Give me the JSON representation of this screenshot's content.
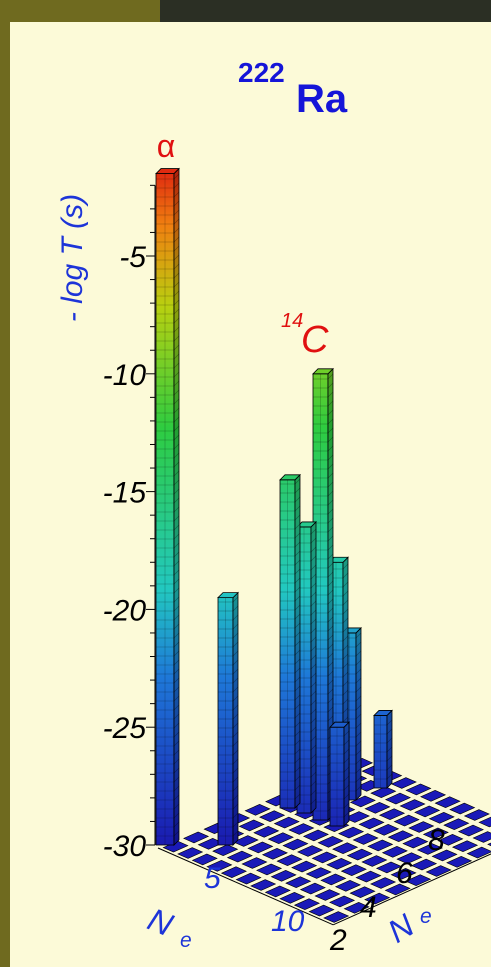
{
  "colors": {
    "sidebar": "#6f6a1f",
    "topbar": "#2b2f24",
    "panel": "#fcfad8",
    "title": "#1515d8",
    "blue_text": "#1d34d8",
    "red_text": "#e01010",
    "axis": "#000000"
  },
  "chart_data": {
    "type": "bar3d",
    "title_mass": "222",
    "title_element": "Ra",
    "ylabel": "- log T (s)",
    "ylim": [
      -30,
      -2
    ],
    "yticks": [
      {
        "value": -5,
        "label": "-5"
      },
      {
        "value": -10,
        "label": "-10"
      },
      {
        "value": -15,
        "label": "-15"
      },
      {
        "value": -20,
        "label": "-20"
      },
      {
        "value": -25,
        "label": "-25"
      },
      {
        "value": -30,
        "label": "-30"
      }
    ],
    "x_axis": {
      "label_main": "N",
      "label_sub": "e",
      "ticks": [
        "5",
        "10"
      ]
    },
    "z_axis": {
      "label_main": "N",
      "label_sub": "e",
      "ticks": [
        "2",
        "4",
        "6",
        "8"
      ]
    },
    "bars": [
      {
        "label": "α",
        "value": -1.5
      },
      {
        "label": "",
        "value": -19.5
      },
      {
        "label": "",
        "value": -14.5
      },
      {
        "label": "",
        "value": -16.5
      },
      {
        "label": "14C",
        "value": -10.0
      },
      {
        "label": "",
        "value": -18.0
      },
      {
        "label": "",
        "value": -21.0
      },
      {
        "label": "",
        "value": -25.0
      },
      {
        "label": "",
        "value": -24.5
      }
    ],
    "annotations": [
      {
        "text": "α"
      },
      {
        "mass": "14",
        "element": "C"
      }
    ]
  }
}
